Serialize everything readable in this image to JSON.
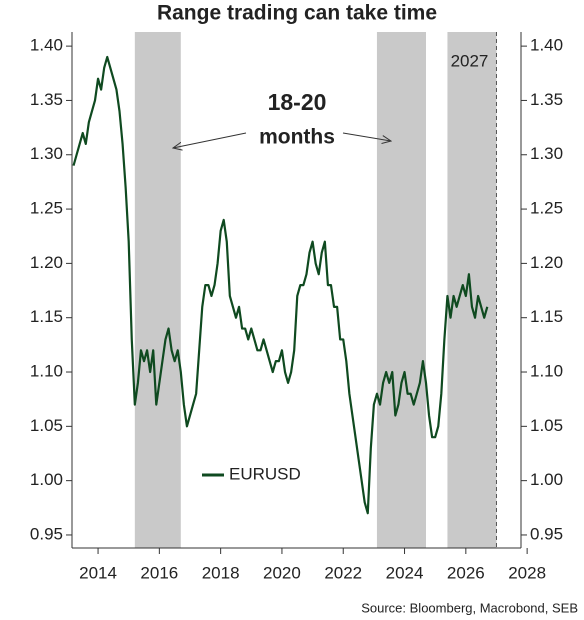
{
  "chart_data": {
    "type": "line",
    "title": "Range trading can take time",
    "annotation_lines": [
      "18-20",
      "months"
    ],
    "source": "Source: Bloomberg, Macrobond, SEB",
    "marker_line": {
      "value": 2027,
      "label": "2027"
    },
    "shaded_regions": [
      [
        2015.2,
        2016.7
      ],
      [
        2023.1,
        2024.7
      ],
      [
        2025.4,
        2027.0
      ]
    ],
    "shade_color": "#c9c9c9",
    "legend_loc": "lower center",
    "grid": false,
    "xlim": [
      2013.15,
      2027.8
    ],
    "xticks": [
      2014,
      2016,
      2018,
      2020,
      2022,
      2024,
      2026,
      2028
    ],
    "ylim": [
      0.938,
      1.413
    ],
    "yticks": [
      {
        "value": 1.4,
        "label": "1.40"
      },
      1.35,
      {
        "value": 1.3,
        "label": "1.30"
      },
      1.25,
      {
        "value": 1.2,
        "label": "1.20"
      },
      1.15,
      {
        "value": 1.1,
        "label": "1.10"
      },
      1.05,
      {
        "value": 1.0,
        "label": "1.00"
      },
      0.95
    ],
    "y2lim": [
      0.938,
      1.413
    ],
    "y2ticks": [
      {
        "value": 1.4,
        "label": "1.40"
      },
      1.35,
      {
        "value": 1.3,
        "label": "1.30"
      },
      1.25,
      {
        "value": 1.2,
        "label": "1.20"
      },
      1.15,
      {
        "value": 1.1,
        "label": "1.10"
      },
      1.05,
      {
        "value": 1.0,
        "label": "1.00"
      },
      0.95
    ],
    "x": [
      2013.2,
      2013.3,
      2013.4,
      2013.5,
      2013.6,
      2013.7,
      2013.8,
      2013.9,
      2014.0,
      2014.1,
      2014.2,
      2014.3,
      2014.4,
      2014.5,
      2014.6,
      2014.7,
      2014.8,
      2014.9,
      2015.0,
      2015.1,
      2015.2,
      2015.3,
      2015.4,
      2015.5,
      2015.6,
      2015.7,
      2015.8,
      2015.9,
      2016.0,
      2016.1,
      2016.2,
      2016.3,
      2016.4,
      2016.5,
      2016.6,
      2016.7,
      2016.8,
      2016.9,
      2017.0,
      2017.1,
      2017.2,
      2017.3,
      2017.4,
      2017.5,
      2017.6,
      2017.7,
      2017.8,
      2017.9,
      2018.0,
      2018.1,
      2018.2,
      2018.3,
      2018.4,
      2018.5,
      2018.6,
      2018.7,
      2018.8,
      2018.9,
      2019.0,
      2019.1,
      2019.2,
      2019.3,
      2019.4,
      2019.5,
      2019.6,
      2019.7,
      2019.8,
      2019.9,
      2020.0,
      2020.1,
      2020.2,
      2020.3,
      2020.4,
      2020.5,
      2020.6,
      2020.7,
      2020.8,
      2020.9,
      2021.0,
      2021.1,
      2021.2,
      2021.3,
      2021.4,
      2021.5,
      2021.6,
      2021.7,
      2021.8,
      2021.9,
      2022.0,
      2022.1,
      2022.2,
      2022.3,
      2022.4,
      2022.5,
      2022.6,
      2022.7,
      2022.8,
      2022.9,
      2023.0,
      2023.1,
      2023.2,
      2023.3,
      2023.4,
      2023.5,
      2023.6,
      2023.7,
      2023.8,
      2023.9,
      2024.0,
      2024.1,
      2024.2,
      2024.3,
      2024.4,
      2024.5,
      2024.6,
      2024.7,
      2024.8,
      2024.9,
      2025.0,
      2025.1,
      2025.2,
      2025.3,
      2025.4,
      2025.5,
      2025.6,
      2025.7,
      2025.8,
      2025.9,
      2026.0,
      2026.1,
      2026.2,
      2026.3,
      2026.4,
      2026.5,
      2026.6,
      2026.7
    ],
    "series": [
      {
        "name": "EURUSD",
        "color": "#0f4a20",
        "values": [
          1.29,
          1.3,
          1.31,
          1.32,
          1.31,
          1.33,
          1.34,
          1.35,
          1.37,
          1.36,
          1.38,
          1.39,
          1.38,
          1.37,
          1.36,
          1.34,
          1.31,
          1.27,
          1.22,
          1.13,
          1.07,
          1.09,
          1.12,
          1.11,
          1.12,
          1.1,
          1.12,
          1.07,
          1.09,
          1.11,
          1.13,
          1.14,
          1.12,
          1.11,
          1.12,
          1.1,
          1.07,
          1.05,
          1.06,
          1.07,
          1.08,
          1.12,
          1.16,
          1.18,
          1.18,
          1.17,
          1.18,
          1.2,
          1.23,
          1.24,
          1.22,
          1.17,
          1.16,
          1.15,
          1.16,
          1.14,
          1.14,
          1.13,
          1.14,
          1.13,
          1.12,
          1.12,
          1.13,
          1.12,
          1.11,
          1.1,
          1.11,
          1.11,
          1.12,
          1.1,
          1.09,
          1.1,
          1.12,
          1.17,
          1.18,
          1.18,
          1.19,
          1.21,
          1.22,
          1.2,
          1.19,
          1.21,
          1.22,
          1.18,
          1.18,
          1.16,
          1.16,
          1.13,
          1.13,
          1.11,
          1.08,
          1.06,
          1.04,
          1.02,
          1.0,
          0.98,
          0.97,
          1.03,
          1.07,
          1.08,
          1.07,
          1.09,
          1.1,
          1.09,
          1.1,
          1.06,
          1.07,
          1.09,
          1.1,
          1.08,
          1.08,
          1.07,
          1.08,
          1.09,
          1.11,
          1.09,
          1.06,
          1.04,
          1.04,
          1.05,
          1.08,
          1.13,
          1.17,
          1.15,
          1.17,
          1.16,
          1.17,
          1.18,
          1.17,
          1.19,
          1.16,
          1.15,
          1.17,
          1.16,
          1.15,
          1.16
        ]
      }
    ]
  }
}
